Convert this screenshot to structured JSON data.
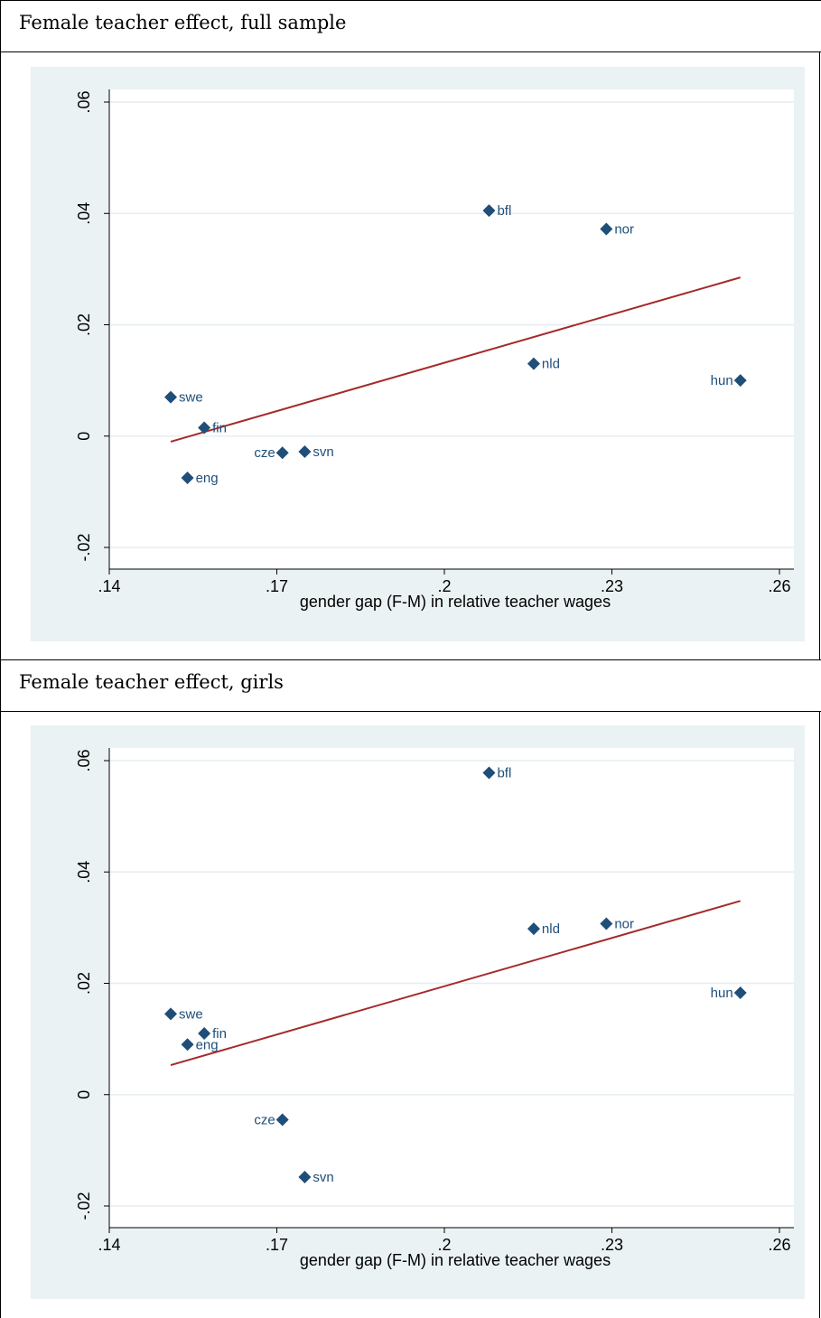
{
  "panels": [
    {
      "title": "Female teacher effect, full sample"
    },
    {
      "title": "Female teacher effect, girls"
    }
  ],
  "colors": {
    "marker": "#1f4e79",
    "fit_line": "#a52a2a",
    "plot_bg": "#eaf2f3",
    "label": "#1f4e79"
  },
  "chart_data": [
    {
      "type": "scatter",
      "title": "Female teacher effect, full sample",
      "xlabel": "gender gap (F-M) in relative teacher wages",
      "ylabel": "",
      "xlim": [
        0.14,
        0.26
      ],
      "ylim": [
        -0.02,
        0.06
      ],
      "xticks": [
        ".14",
        ".17",
        ".2",
        ".23",
        ".26"
      ],
      "yticks": [
        "-.02",
        "0",
        ".02",
        ".04",
        ".06"
      ],
      "grid": "horizontal",
      "points": [
        {
          "label": "swe",
          "x": 0.151,
          "y": 0.007
        },
        {
          "label": "fin",
          "x": 0.157,
          "y": 0.0015
        },
        {
          "label": "eng",
          "x": 0.154,
          "y": -0.0075
        },
        {
          "label": "cze",
          "x": 0.171,
          "y": -0.003
        },
        {
          "label": "svn",
          "x": 0.175,
          "y": -0.0028
        },
        {
          "label": "bfl",
          "x": 0.208,
          "y": 0.0405
        },
        {
          "label": "nld",
          "x": 0.216,
          "y": 0.013
        },
        {
          "label": "nor",
          "x": 0.229,
          "y": 0.0372
        },
        {
          "label": "hun",
          "x": 0.253,
          "y": 0.01
        }
      ],
      "fit_line": {
        "x": [
          0.151,
          0.253
        ],
        "y": [
          -0.001,
          0.0285
        ]
      }
    },
    {
      "type": "scatter",
      "title": "Female teacher effect, girls",
      "xlabel": "gender gap (F-M) in relative teacher wages",
      "ylabel": "",
      "xlim": [
        0.14,
        0.26
      ],
      "ylim": [
        -0.02,
        0.06
      ],
      "xticks": [
        ".14",
        ".17",
        ".2",
        ".23",
        ".26"
      ],
      "yticks": [
        "-.02",
        "0",
        ".02",
        ".04",
        ".06"
      ],
      "grid": "horizontal",
      "points": [
        {
          "label": "swe",
          "x": 0.151,
          "y": 0.0145
        },
        {
          "label": "fin",
          "x": 0.157,
          "y": 0.011
        },
        {
          "label": "eng",
          "x": 0.154,
          "y": 0.009
        },
        {
          "label": "cze",
          "x": 0.171,
          "y": -0.0045
        },
        {
          "label": "svn",
          "x": 0.175,
          "y": -0.0148
        },
        {
          "label": "bfl",
          "x": 0.208,
          "y": 0.0578
        },
        {
          "label": "nld",
          "x": 0.216,
          "y": 0.0298
        },
        {
          "label": "nor",
          "x": 0.229,
          "y": 0.0307
        },
        {
          "label": "hun",
          "x": 0.253,
          "y": 0.0183
        }
      ],
      "fit_line": {
        "x": [
          0.151,
          0.253
        ],
        "y": [
          0.0053,
          0.0348
        ]
      }
    }
  ]
}
